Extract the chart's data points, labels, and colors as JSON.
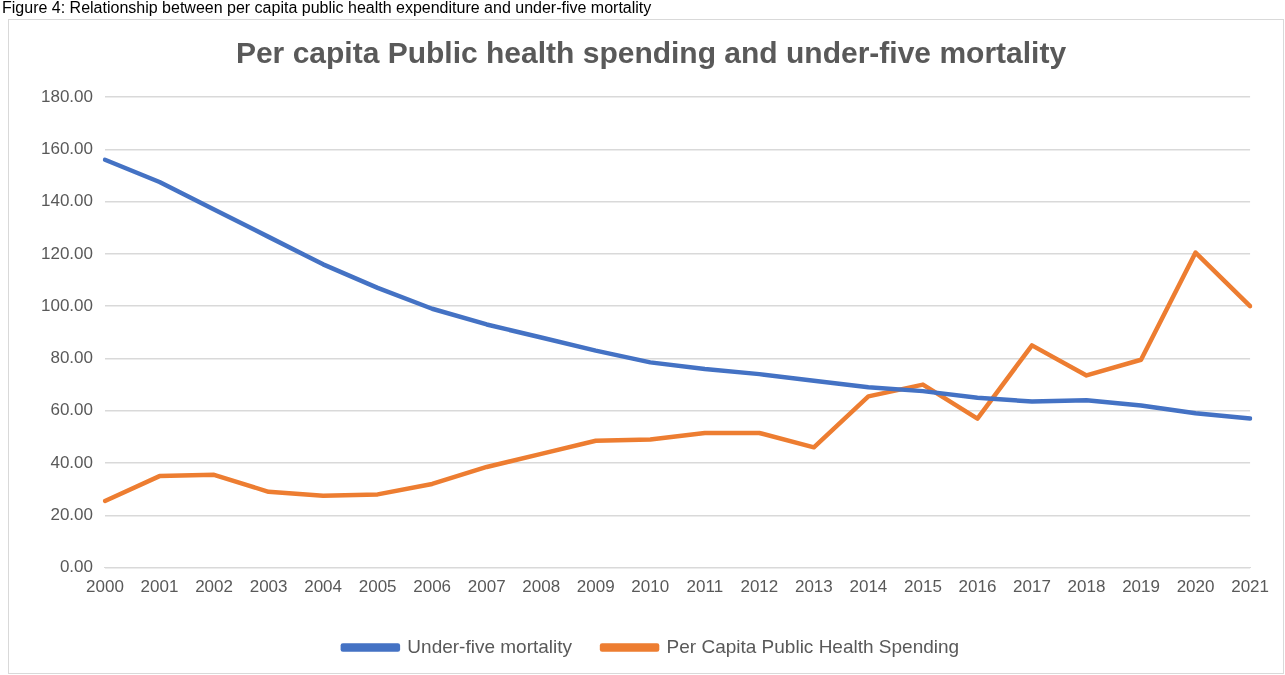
{
  "chart_data": {
    "type": "line",
    "title": "Per capita Public health spending and under-five mortality",
    "annotations": [
      "Figure 4: Relationship between per capita public health expenditure and under-five mortality"
    ],
    "categories": [
      "2000",
      "2001",
      "2002",
      "2003",
      "2004",
      "2005",
      "2006",
      "2007",
      "2008",
      "2009",
      "2010",
      "2011",
      "2012",
      "2013",
      "2014",
      "2015",
      "2016",
      "2017",
      "2018",
      "2019",
      "2020",
      "2021"
    ],
    "series": [
      {
        "name": "Under-five mortality",
        "color": "#4472c4",
        "values": [
          156,
          147.5,
          137,
          126.5,
          116,
          107,
          99,
          93,
          88,
          83,
          78.5,
          76,
          74,
          71.5,
          69,
          67.5,
          65,
          63.5,
          64,
          62,
          59,
          57
        ]
      },
      {
        "name": "Per Capita Public Health Spending",
        "color": "#ed7d31",
        "values": [
          25.5,
          35,
          35.5,
          29,
          27.5,
          28,
          32,
          38.5,
          43.5,
          48.5,
          49,
          51.5,
          51.5,
          46,
          65.5,
          70,
          57,
          85,
          73.5,
          79.5,
          120.5,
          100
        ]
      }
    ],
    "ylim": [
      0,
      180
    ],
    "yticks": [
      {
        "value": 0,
        "label": "0.00"
      },
      {
        "value": 20,
        "label": "20.00"
      },
      {
        "value": 40,
        "label": "40.00"
      },
      {
        "value": 60,
        "label": "60.00"
      },
      {
        "value": 80,
        "label": "80.00"
      },
      {
        "value": 100,
        "label": "100.00"
      },
      {
        "value": 120,
        "label": "120.00"
      },
      {
        "value": 140,
        "label": "140.00"
      },
      {
        "value": 160,
        "label": "160.00"
      },
      {
        "value": 180,
        "label": "180.00"
      }
    ],
    "grid": "y",
    "legend": "bottom",
    "marker": "none",
    "line_style": "solid"
  }
}
